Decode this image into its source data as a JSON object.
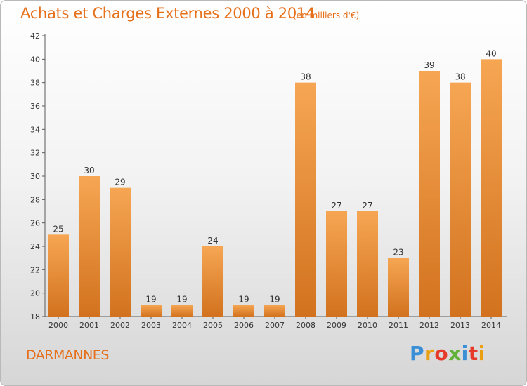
{
  "header": {
    "title": "Achats et Charges Externes 2000 à 2014",
    "unit": "(en milliers d'€)"
  },
  "footer": {
    "commune": "DARMANNES",
    "brand_parts": [
      "P",
      "r",
      "o",
      "x",
      "i",
      "t",
      "i"
    ]
  },
  "colors": {
    "accent": "#e66f1a",
    "bar_top": "#f6a653",
    "bar_bottom": "#d2721e",
    "grid": "#5a5a5a"
  },
  "chart_data": {
    "type": "bar",
    "categories": [
      "2000",
      "2001",
      "2002",
      "2003",
      "2004",
      "2005",
      "2006",
      "2007",
      "2008",
      "2009",
      "2010",
      "2011",
      "2012",
      "2013",
      "2014"
    ],
    "values": [
      25,
      30,
      29,
      19,
      19,
      24,
      19,
      19,
      38,
      27,
      27,
      23,
      39,
      38,
      40
    ],
    "data_labels": [
      "25",
      "30",
      "29",
      "19",
      "19",
      "24",
      "19",
      "19",
      "38",
      "27",
      "27",
      "23",
      "39",
      "38",
      "40"
    ],
    "title": "Achats et Charges Externes 2000 à 2014",
    "ylim": [
      18,
      42
    ],
    "yticks": [
      18,
      20,
      22,
      24,
      26,
      28,
      30,
      32,
      34,
      36,
      38,
      40,
      42
    ],
    "ytick_labels": [
      "18",
      "20",
      "22",
      "24",
      "26",
      "28",
      "30",
      "32",
      "34",
      "36",
      "38",
      "40",
      "42"
    ],
    "grid": false,
    "legend": "none"
  }
}
